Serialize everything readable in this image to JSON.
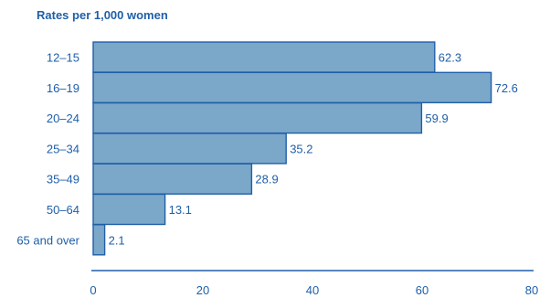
{
  "chart_data": {
    "type": "bar",
    "orientation": "horizontal",
    "title": "Rates per 1,000 women",
    "categories": [
      "12–15",
      "16–19",
      "20–24",
      "25–34",
      "35–49",
      "50–64",
      "65 and over"
    ],
    "values": [
      62.3,
      72.6,
      59.9,
      35.2,
      28.9,
      13.1,
      2.1
    ],
    "value_labels": [
      "62.3",
      "72.6",
      "59.9",
      "35.2",
      "28.9",
      "13.1",
      "2.1"
    ],
    "xlim": [
      0,
      80
    ],
    "xticks": [
      0,
      20,
      40,
      60,
      80
    ],
    "xtick_labels": [
      "0",
      "20",
      "40",
      "60",
      "80"
    ],
    "xlabel": "",
    "ylabel": "",
    "grid": false,
    "legend": "none"
  },
  "colors": {
    "bar_fill": "#7ba7c9",
    "bar_stroke": "#1f5fa8",
    "text": "#1f5fa8",
    "axis": "#1f5fa8"
  }
}
